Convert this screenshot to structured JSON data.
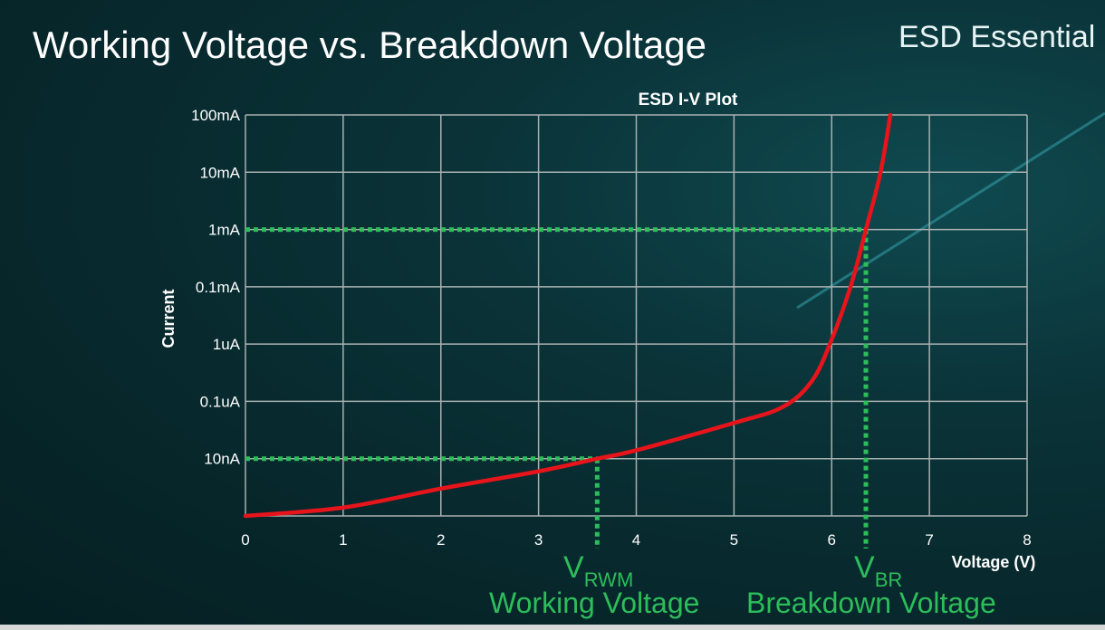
{
  "slide": {
    "title": "Working Voltage vs. Breakdown Voltage",
    "brand": "ESD Essential"
  },
  "colors": {
    "curve": "#e8141b",
    "guide": "#2dbd5a",
    "grid": "#a8b0b0",
    "background": "#07272b"
  },
  "annotations": {
    "vrwm_symbol": "V",
    "vrwm_sub": "RWM",
    "vrwm_label": "Working Voltage",
    "vbr_symbol": "V",
    "vbr_sub": "BR",
    "vbr_label": "Breakdown Voltage"
  },
  "chart_data": {
    "type": "line",
    "title": "ESD I-V Plot",
    "xlabel": "Voltage (V)",
    "ylabel": "Current",
    "xlim": [
      0,
      8
    ],
    "x_ticks": [
      "0",
      "1",
      "2",
      "3",
      "4",
      "5",
      "6",
      "7",
      "8"
    ],
    "y_scale": "log",
    "y_ticks": [
      "",
      "10nA",
      "0.1uA",
      "1uA",
      "0.1mA",
      "1mA",
      "10mA",
      "100mA"
    ],
    "y_tick_values": [
      1e-09,
      1e-08,
      1e-07,
      1e-06,
      0.0001,
      0.001,
      0.01,
      0.1
    ],
    "grid": true,
    "series": [
      {
        "points": [
          [
            0,
            1e-09
          ],
          [
            1,
            1.4e-09
          ],
          [
            2,
            3e-09
          ],
          [
            3,
            6e-09
          ],
          [
            3.6,
            1e-08
          ],
          [
            4,
            1.4e-08
          ],
          [
            5,
            4.2e-08
          ],
          [
            5.5,
            8e-08
          ],
          [
            5.8,
            2.3e-07
          ],
          [
            6,
            1.45e-06
          ],
          [
            6.2,
            0.00011
          ],
          [
            6.35,
            0.001
          ],
          [
            6.5,
            0.01
          ],
          [
            6.6,
            0.1
          ]
        ]
      }
    ],
    "guides": [
      {
        "name": "VRWM",
        "voltage": 3.6,
        "current": 1e-08
      },
      {
        "name": "VBR",
        "voltage": 6.35,
        "current": 0.001
      }
    ]
  }
}
